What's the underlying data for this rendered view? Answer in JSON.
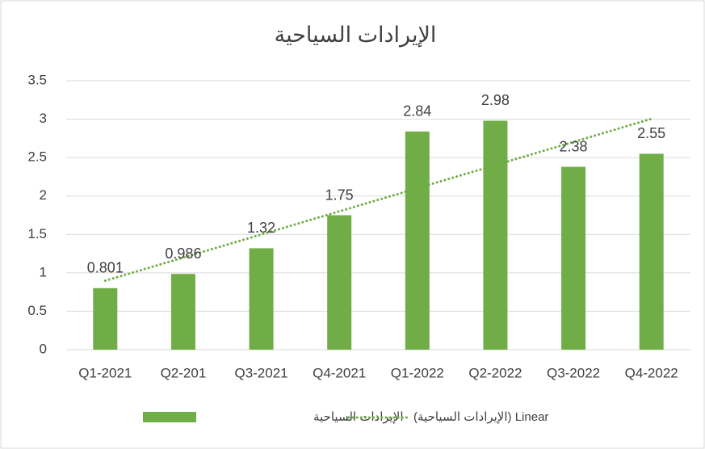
{
  "chart_data": {
    "type": "bar",
    "title": "الإيرادات السياحية",
    "categories": [
      "Q1-2021",
      "Q2-201",
      "Q3-2021",
      "Q4-2021",
      "Q1-2022",
      "Q2-2022",
      "Q3-2022",
      "Q4-2022"
    ],
    "series": [
      {
        "name": "الإيرادات السياحية",
        "color": "#70ad47",
        "values": [
          0.801,
          0.986,
          1.32,
          1.75,
          2.84,
          2.98,
          2.38,
          2.55
        ]
      }
    ],
    "trendline": {
      "type": "linear",
      "name": "Linear (الإيرادات السياحية)",
      "color": "#70ad47"
    },
    "ylim": [
      0,
      3.5
    ],
    "yticks": [
      0,
      0.5,
      1,
      1.5,
      2,
      2.5,
      3,
      3.5
    ],
    "grid": true,
    "legend": "bottom"
  }
}
